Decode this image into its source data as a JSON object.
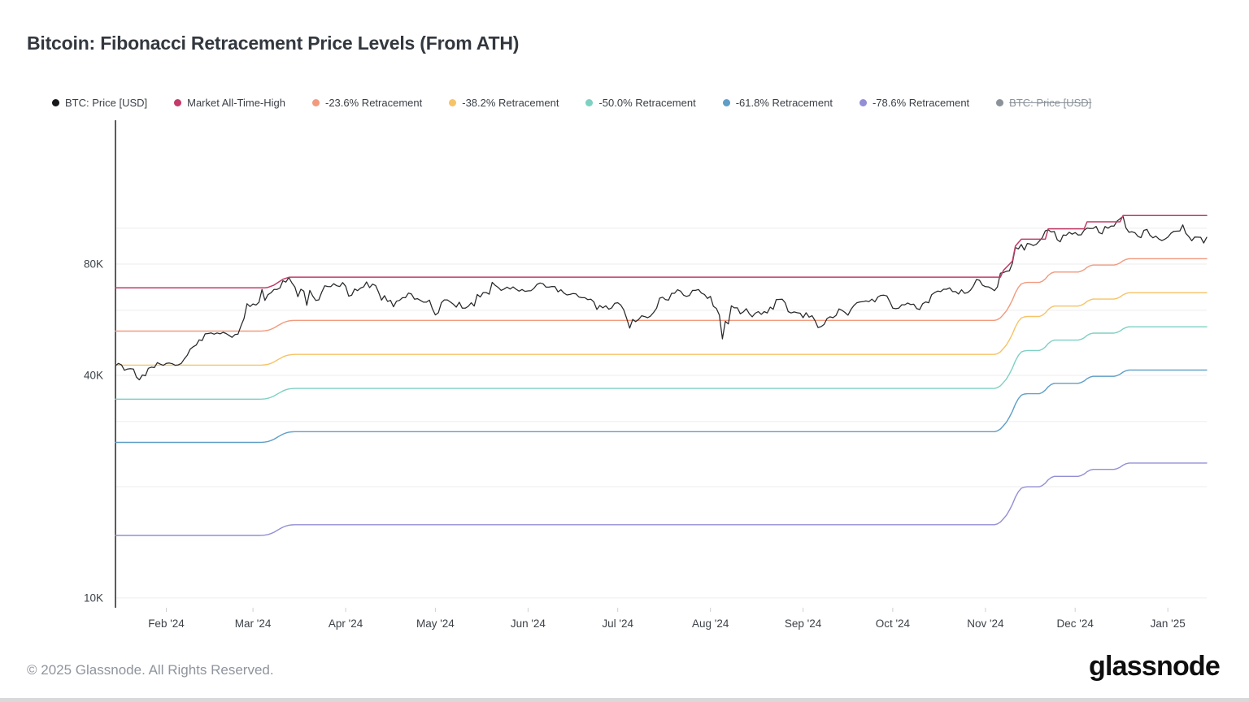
{
  "header": {
    "title": "Bitcoin: Fibonacci Retracement Price Levels (From ATH)"
  },
  "legend": {
    "items": [
      {
        "label": "BTC: Price [USD]",
        "color": "#17181a",
        "disabled": false
      },
      {
        "label": "Market All-Time-High",
        "color": "#c43a6a",
        "disabled": false
      },
      {
        "label": "-23.6% Retracement",
        "color": "#f29a7e",
        "disabled": false
      },
      {
        "label": "-38.2% Retracement",
        "color": "#f6c366",
        "disabled": false
      },
      {
        "label": "-50.0% Retracement",
        "color": "#7ed0c2",
        "disabled": false
      },
      {
        "label": "-61.8% Retracement",
        "color": "#5f9ec7",
        "disabled": false
      },
      {
        "label": "-78.6% Retracement",
        "color": "#928fd6",
        "disabled": false
      },
      {
        "label": "BTC: Price [USD]",
        "color": "#8b929a",
        "disabled": true
      }
    ]
  },
  "footer": {
    "copyright": "© 2025 Glassnode. All Rights Reserved.",
    "brand": "glassnode"
  },
  "chart_data": {
    "type": "line",
    "title": "Bitcoin: Fibonacci Retracement Price Levels (From ATH)",
    "y_axis": {
      "scale": "log",
      "unit": "USD",
      "range_usd": [
        9500,
        195000
      ],
      "gridlines": [
        {
          "value_k": 10,
          "label": "10K"
        },
        {
          "value_k": 20,
          "label": ""
        },
        {
          "value_k": 30,
          "label": ""
        },
        {
          "value_k": 40,
          "label": "40K"
        },
        {
          "value_k": 60,
          "label": ""
        },
        {
          "value_k": 80,
          "label": "80K"
        },
        {
          "value_k": 100,
          "label": ""
        }
      ]
    },
    "x_axis": {
      "start_date": "2024-01-15",
      "end_date": "2025-01-14",
      "domain_days": [
        0,
        365
      ],
      "ticks": [
        {
          "day": 17,
          "label": "Feb '24"
        },
        {
          "day": 46,
          "label": "Mar '24"
        },
        {
          "day": 77,
          "label": "Apr '24"
        },
        {
          "day": 107,
          "label": "May '24"
        },
        {
          "day": 138,
          "label": "Jun '24"
        },
        {
          "day": 168,
          "label": "Jul '24"
        },
        {
          "day": 199,
          "label": "Aug '24"
        },
        {
          "day": 230,
          "label": "Sep '24"
        },
        {
          "day": 260,
          "label": "Oct '24"
        },
        {
          "day": 291,
          "label": "Nov '24"
        },
        {
          "day": 321,
          "label": "Dec '24"
        },
        {
          "day": 352,
          "label": "Jan '25"
        }
      ]
    },
    "series": [
      {
        "id": "btc-price",
        "name": "BTC: Price [USD]",
        "role": "price",
        "color": "#26282b",
        "width": 1.25,
        "unit": "kUSD",
        "day_step": 1,
        "values_k": [
          42.5,
          43.1,
          42.7,
          41.3,
          41.6,
          41.7,
          41.6,
          39.6,
          38.9,
          40.1,
          39.9,
          41.8,
          42.1,
          42.0,
          43.3,
          42.9,
          42.6,
          43.1,
          43.2,
          43.0,
          42.6,
          42.7,
          43.1,
          44.3,
          45.3,
          47.1,
          47.8,
          48.3,
          49.9,
          49.7,
          51.8,
          51.9,
          52.1,
          51.7,
          52.1,
          51.8,
          52.3,
          51.9,
          51.3,
          50.7,
          51.6,
          51.7,
          54.5,
          57.0,
          62.5,
          61.4,
          62.4,
          62.0,
          63.1,
          68.3,
          63.8,
          66.1,
          66.9,
          68.3,
          68.3,
          68.9,
          72.1,
          71.5,
          73.6,
          71.2,
          69.4,
          65.3,
          68.4,
          67.6,
          61.9,
          67.9,
          65.5,
          63.8,
          64.0,
          67.2,
          69.9,
          69.6,
          69.5,
          70.8,
          69.9,
          69.6,
          71.3,
          69.7,
          65.5,
          65.9,
          68.5,
          67.8,
          68.9,
          69.4,
          71.6,
          69.1,
          70.6,
          70.0,
          67.1,
          63.9,
          65.7,
          63.4,
          63.8,
          61.3,
          63.5,
          63.8,
          64.9,
          64.9,
          66.8,
          66.4,
          64.3,
          64.5,
          63.8,
          63.1,
          63.1,
          63.9,
          60.6,
          58.3,
          59.1,
          62.9,
          64.0,
          64.0,
          63.2,
          62.3,
          61.2,
          63.1,
          60.8,
          60.8,
          61.5,
          62.9,
          61.6,
          66.2,
          65.2,
          67.0,
          67.0,
          66.3,
          71.4,
          70.1,
          69.2,
          67.9,
          68.5,
          69.3,
          68.5,
          69.4,
          68.4,
          67.6,
          68.3,
          67.5,
          67.7,
          67.8,
          68.8,
          70.5,
          71.1,
          70.8,
          69.3,
          69.3,
          69.6,
          69.5,
          67.3,
          68.2,
          66.8,
          66.0,
          66.2,
          66.6,
          66.5,
          65.2,
          64.9,
          64.9,
          64.1,
          64.3,
          63.2,
          60.3,
          61.8,
          60.9,
          61.7,
          60.4,
          60.9,
          62.7,
          62.9,
          62.0,
          60.2,
          57.0,
          53.7,
          56.7,
          55.9,
          56.7,
          58.0,
          57.7,
          57.3,
          57.9,
          59.2,
          60.8,
          64.7,
          65.1,
          64.1,
          63.9,
          66.7,
          66.7,
          68.2,
          67.6,
          65.9,
          65.4,
          65.8,
          67.9,
          67.9,
          68.3,
          66.8,
          66.2,
          64.6,
          65.4,
          61.5,
          60.7,
          58.2,
          50.2,
          56.0,
          55.1,
          61.7,
          60.9,
          60.9,
          58.7,
          59.4,
          60.6,
          58.7,
          57.6,
          58.9,
          59.5,
          58.5,
          59.5,
          59.0,
          61.2,
          60.4,
          64.1,
          64.2,
          64.3,
          62.9,
          59.5,
          59.0,
          59.4,
          59.1,
          58.9,
          57.3,
          59.1,
          57.5,
          58.0,
          56.2,
          53.9,
          54.2,
          54.9,
          57.0,
          57.6,
          57.3,
          58.1,
          60.5,
          60.0,
          59.2,
          58.2,
          60.3,
          61.8,
          62.9,
          63.2,
          63.3,
          63.6,
          63.3,
          64.3,
          63.2,
          65.2,
          65.8,
          65.9,
          65.6,
          63.3,
          60.8,
          60.6,
          60.8,
          62.1,
          62.1,
          62.8,
          62.2,
          62.3,
          60.6,
          60.3,
          62.5,
          63.2,
          62.9,
          66.1,
          67.0,
          67.6,
          67.4,
          68.4,
          68.4,
          69.0,
          67.4,
          67.4,
          66.4,
          68.2,
          66.7,
          67.0,
          68.0,
          69.9,
          72.7,
          72.3,
          70.2,
          69.5,
          69.4,
          68.7,
          67.8,
          69.4,
          75.6,
          75.9,
          76.5,
          76.7,
          80.4,
          88.7,
          87.9,
          90.4,
          87.3,
          91.0,
          90.6,
          89.8,
          90.5,
          92.3,
          94.3,
          98.4,
          99.0,
          97.7,
          98.0,
          93.1,
          91.9,
          95.9,
          95.7,
          97.5,
          96.4,
          97.3,
          95.9,
          96.0,
          98.8,
          100.1,
          99.8,
          99.9,
          101.2,
          97.3,
          96.6,
          101.1,
          100.0,
          101.4,
          101.4,
          104.5,
          106.1,
          107.7,
          100.2,
          97.5,
          97.8,
          97.2,
          95.1,
          94.3,
          98.7,
          99.3,
          95.8,
          94.2,
          95.2,
          93.5,
          92.6,
          93.4,
          94.6,
          96.9,
          98.1,
          98.2,
          98.3,
          102.1,
          96.9,
          95.0,
          92.5,
          94.7,
          94.6,
          94.5,
          91.2,
          94.5
        ]
      },
      {
        "id": "ath",
        "name": "Market All-Time-High",
        "role": "ath",
        "color": "#c03a67",
        "width": 1.5,
        "unit": "kUSD",
        "points_day_k": [
          [
            0,
            68.982
          ],
          [
            50,
            68.982
          ],
          [
            51,
            69.21
          ],
          [
            53,
            70.18
          ],
          [
            56,
            72.8
          ],
          [
            58,
            73.68
          ],
          [
            59,
            73.75
          ],
          [
            296,
            73.75
          ],
          [
            297,
            76.9
          ],
          [
            300,
            81.5
          ],
          [
            301,
            89.5
          ],
          [
            303,
            93.4
          ],
          [
            311,
            93.4
          ],
          [
            312,
            99.655
          ],
          [
            324,
            99.655
          ],
          [
            325,
            104.088
          ],
          [
            336,
            104.088
          ],
          [
            337,
            108.268
          ],
          [
            365,
            108.268
          ]
        ]
      },
      {
        "id": "ret-236",
        "name": "-23.6% Retracement",
        "role": "retracement",
        "color": "#f29a7e",
        "width": 1.4,
        "multiplier": 0.764
      },
      {
        "id": "ret-382",
        "name": "-38.2% Retracement",
        "role": "retracement",
        "color": "#f6c366",
        "width": 1.4,
        "multiplier": 0.618
      },
      {
        "id": "ret-500",
        "name": "-50.0% Retracement",
        "role": "retracement",
        "color": "#7ed0c2",
        "width": 1.4,
        "multiplier": 0.5
      },
      {
        "id": "ret-618",
        "name": "-61.8% Retracement",
        "role": "retracement",
        "color": "#5f9ec7",
        "width": 1.4,
        "multiplier": 0.382
      },
      {
        "id": "ret-786",
        "name": "-78.6% Retracement",
        "role": "retracement",
        "color": "#928fd6",
        "width": 1.4,
        "multiplier": 0.214
      },
      {
        "id": "btc-price-hidden",
        "name": "BTC: Price [USD]",
        "role": "price-duplicate",
        "color": "#8b929a",
        "hidden": true
      }
    ]
  }
}
